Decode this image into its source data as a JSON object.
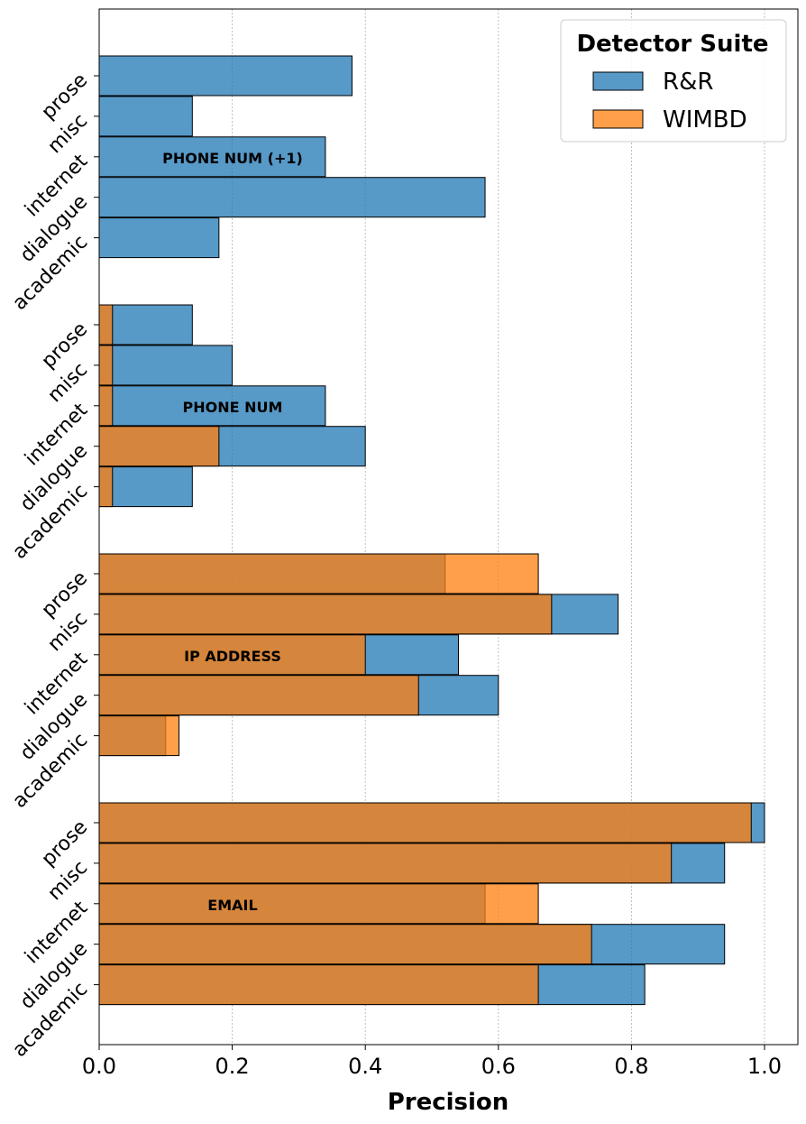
{
  "chart_data": {
    "type": "bar",
    "orientation": "horizontal",
    "xlabel": "Precision",
    "xlim": [
      0,
      1.05
    ],
    "x_ticks": [
      "0.0",
      "0.2",
      "0.4",
      "0.6",
      "0.8",
      "1.0"
    ],
    "x_tick_values": [
      0,
      0.2,
      0.4,
      0.6,
      0.8,
      1.0
    ],
    "grid": "x-dotted",
    "legend": {
      "title": "Detector Suite",
      "position": "top-right",
      "entries": [
        "R&R",
        "WIMBD"
      ]
    },
    "colors": {
      "R&R": "#1f77b4",
      "WIMBD": "#ff7f0e",
      "edge": "#000000"
    },
    "categories": [
      "prose",
      "misc",
      "internet",
      "dialogue",
      "academic"
    ],
    "groups": [
      {
        "label": "PHONE NUM (+1)",
        "series": [
          {
            "name": "R&R",
            "values": [
              0.38,
              0.14,
              0.34,
              0.58,
              0.18
            ]
          },
          {
            "name": "WIMBD",
            "values": [
              0,
              0,
              0,
              0,
              0
            ]
          }
        ]
      },
      {
        "label": "PHONE NUM",
        "series": [
          {
            "name": "R&R",
            "values": [
              0.14,
              0.2,
              0.34,
              0.4,
              0.14
            ]
          },
          {
            "name": "WIMBD",
            "values": [
              0.02,
              0.02,
              0.02,
              0.18,
              0.02
            ]
          }
        ]
      },
      {
        "label": "IP ADDRESS",
        "series": [
          {
            "name": "R&R",
            "values": [
              0.52,
              0.78,
              0.54,
              0.6,
              0.1
            ]
          },
          {
            "name": "WIMBD",
            "values": [
              0.66,
              0.68,
              0.4,
              0.48,
              0.12
            ]
          }
        ]
      },
      {
        "label": "EMAIL",
        "series": [
          {
            "name": "R&R",
            "values": [
              1.0,
              0.94,
              0.58,
              0.94,
              0.82
            ]
          },
          {
            "name": "WIMBD",
            "values": [
              0.98,
              0.86,
              0.66,
              0.74,
              0.66
            ]
          }
        ]
      }
    ]
  }
}
